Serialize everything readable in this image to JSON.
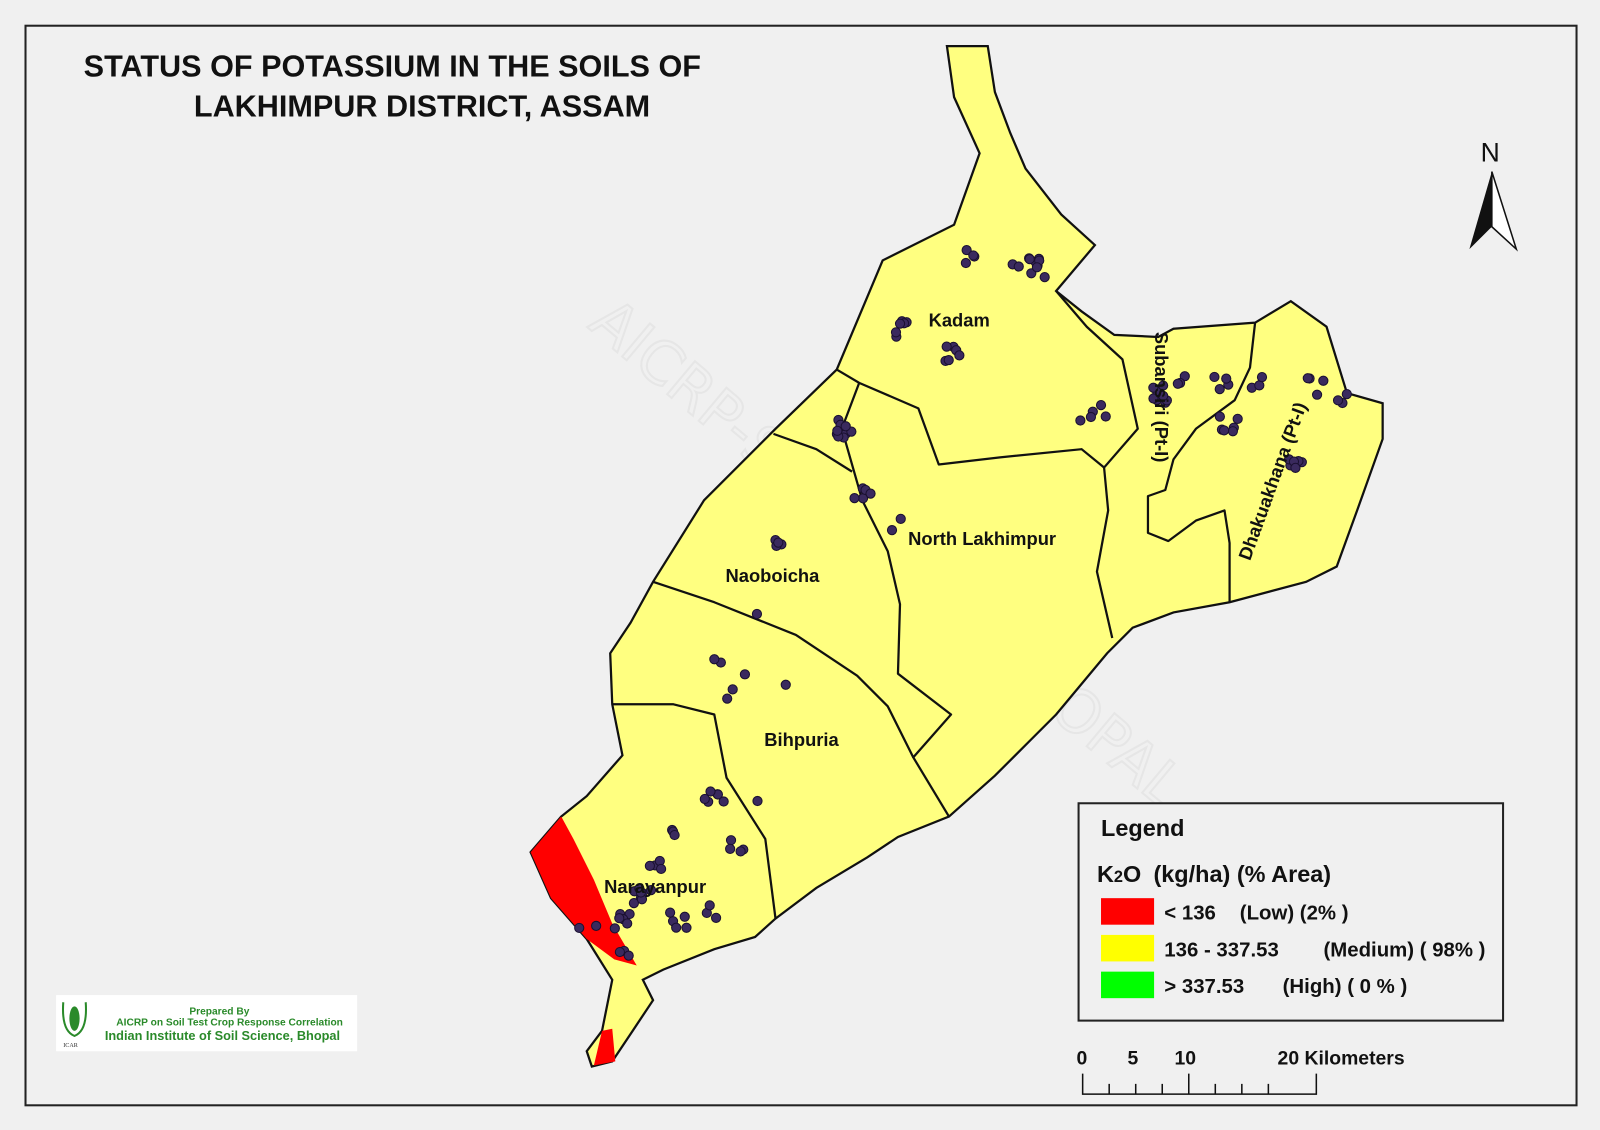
{
  "title": {
    "line1": "STATUS OF  POTASSIUM   IN THE SOILS OF",
    "line2": "LAKHIMPUR  DISTRICT, ASSAM"
  },
  "watermark": "AICRP-STCR, IISS  BHOPAL",
  "north_label": "N",
  "blocks": {
    "kadam": "Kadam",
    "north_lakhimpur": "North Lakhimpur",
    "naoboicha": "Naoboicha",
    "bihpuria": "Bihpuria",
    "narayanpur": "Narayanpur",
    "subansiri": "Subansiri (Pt-I)",
    "dhakuakhana": "Dhakuakhana (Pt-I)"
  },
  "legend": {
    "title": "Legend",
    "subtitle_k": "K",
    "subtitle_sub": "2",
    "subtitle_o": "O",
    "subtitle_rest": "(kg/ha) (% Area)",
    "items": [
      {
        "range": "< 136",
        "class": "(Low) (2% )",
        "color": "#ff0000"
      },
      {
        "range": "136   - 337.53",
        "class": "(Medium) ( 98% )",
        "color": "#ffff00"
      },
      {
        "range": "> 337.53",
        "class": "(High) ( 0 % )",
        "color": "#00ff00"
      }
    ]
  },
  "scale_bar": {
    "ticks": [
      "0",
      "5",
      "10",
      "20 Kilometers"
    ]
  },
  "credit": {
    "logo_text": "ICAR",
    "line1": "Prepared By",
    "line2": "AICRP on Soil Test Crop Response Correlation",
    "line3": "Indian Institute of Soil Science, Bhopal"
  },
  "colors": {
    "medium_fill": "#ffff80",
    "low_fill": "#ff0000",
    "sample_point": "#3a2a5e"
  }
}
